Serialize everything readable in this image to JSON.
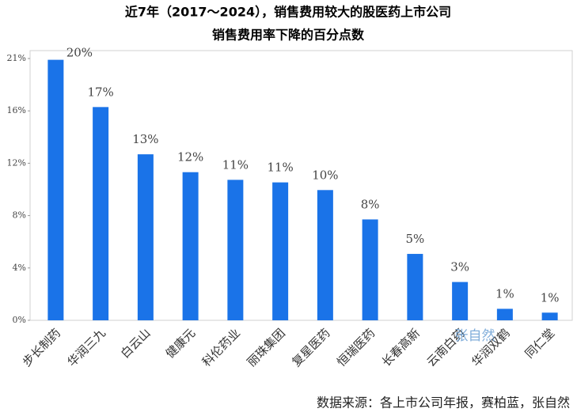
{
  "chart_data": {
    "type": "bar",
    "title": "近7年（2017～2024），销售费用较大的股医药上市公司",
    "subtitle": "销售费用率下降的百分点数",
    "categories": [
      "步长制药",
      "华润三九",
      "白云山",
      "健康元",
      "科伦药业",
      "丽珠集团",
      "复星医药",
      "恒瑞医药",
      "长春高新",
      "云南白药",
      "华润双鹤",
      "同仁堂"
    ],
    "values": [
      20.4,
      16.7,
      13.0,
      11.6,
      11.0,
      10.8,
      10.2,
      7.9,
      5.2,
      3.0,
      0.9,
      0.6
    ],
    "value_labels": [
      "20%",
      "17%",
      "13%",
      "12%",
      "11%",
      "11%",
      "10%",
      "8%",
      "5%",
      "3%",
      "1%",
      "1%"
    ],
    "color": "#1a73e8",
    "ylim": [
      0,
      20.5
    ],
    "yticks": [
      {
        "value": 0,
        "label": "0%"
      },
      {
        "value": 4.1,
        "label": "4%"
      },
      {
        "value": 8.2,
        "label": "8%"
      },
      {
        "value": 12.3,
        "label": "12%"
      },
      {
        "value": 16.4,
        "label": "16%"
      },
      {
        "value": 20.5,
        "label": "21%"
      }
    ],
    "grid": false,
    "watermark": "张自然",
    "source": "数据来源：各上市公司年报，赛柏蓝，张自然"
  }
}
